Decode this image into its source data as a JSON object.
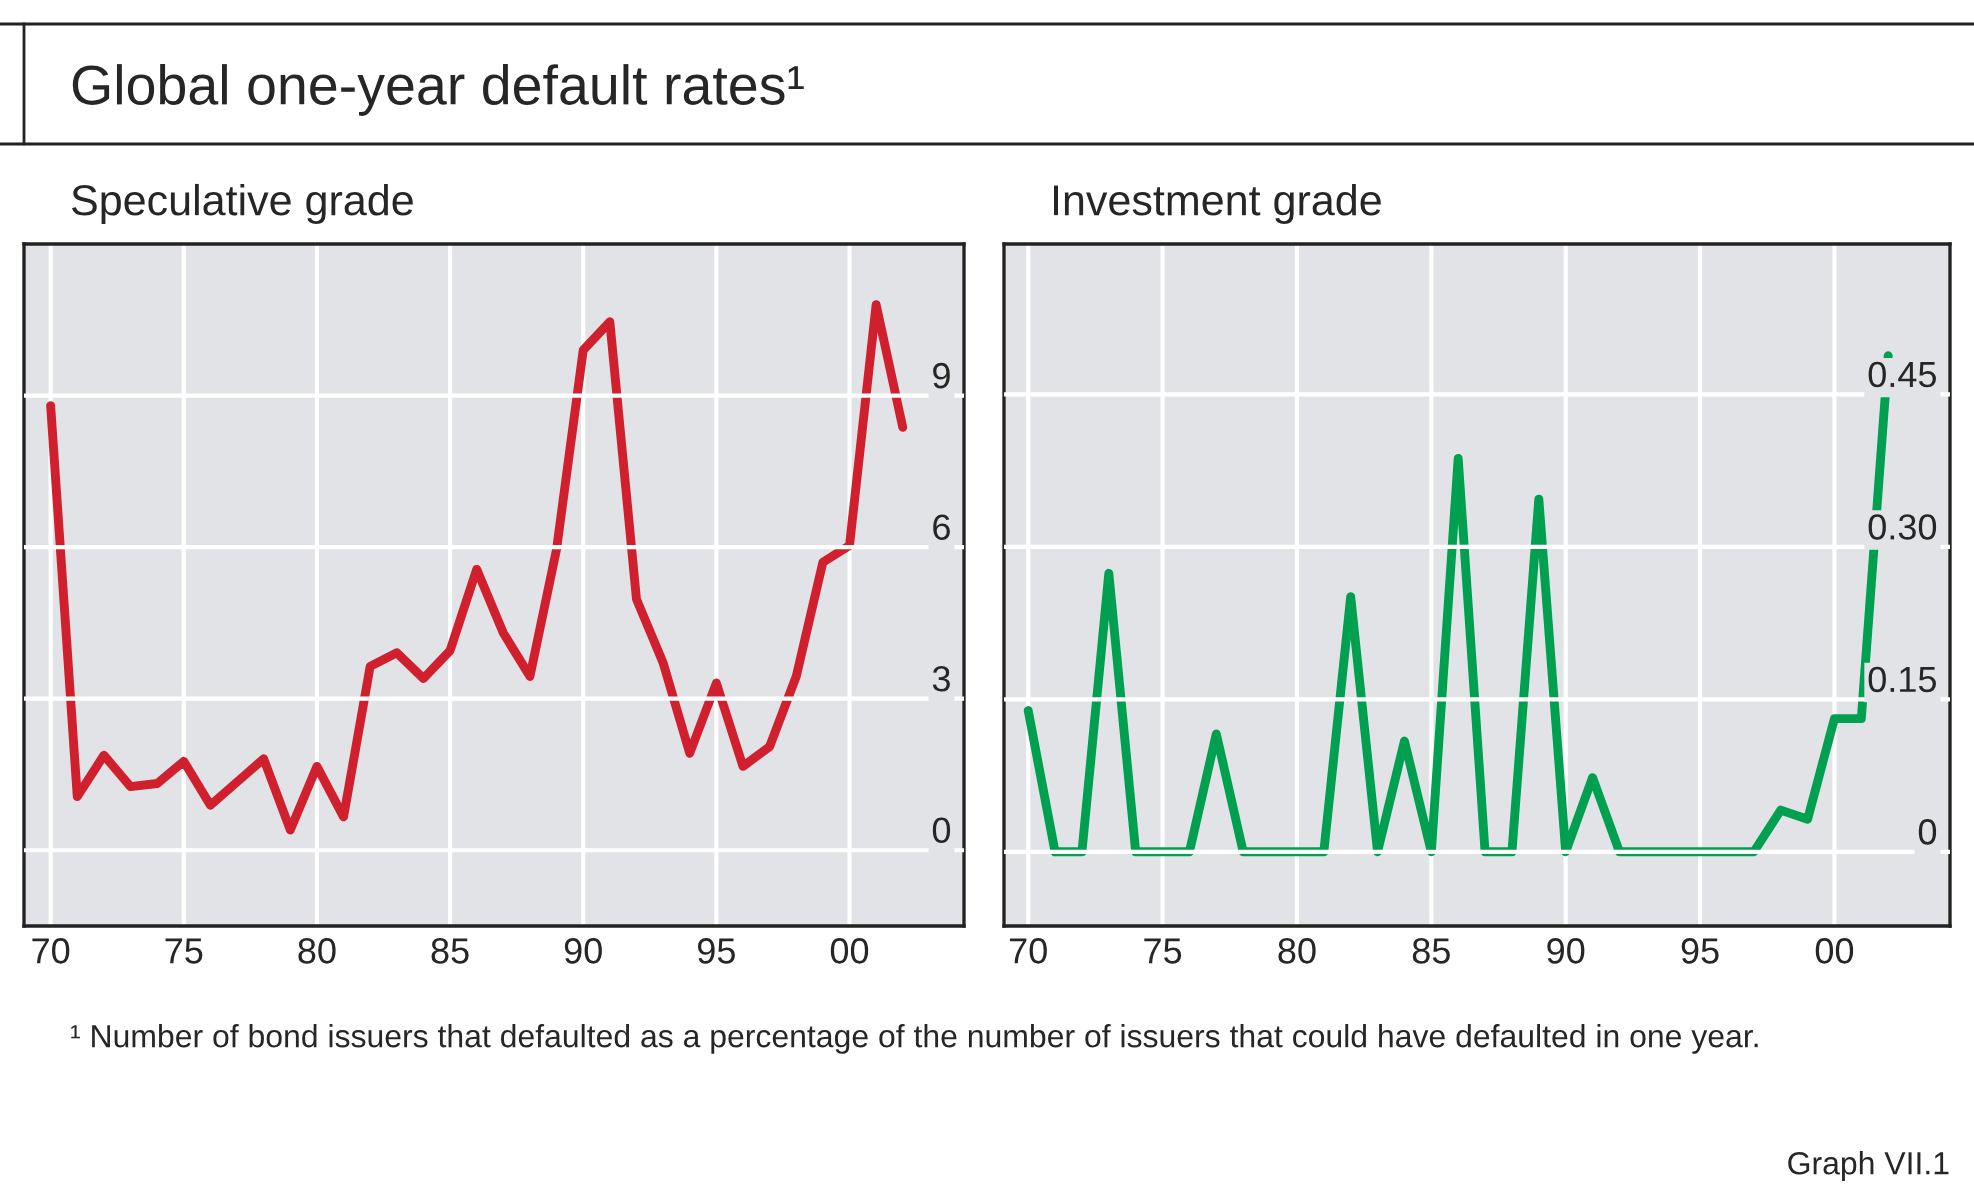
{
  "chart_data": [
    {
      "type": "line",
      "title": "Global one-year default rates¹",
      "subtitle": "Speculative grade",
      "x": [
        1970,
        1971,
        1972,
        1973,
        1974,
        1975,
        1976,
        1977,
        1978,
        1979,
        1980,
        1981,
        1982,
        1983,
        1984,
        1985,
        1986,
        1987,
        1988,
        1989,
        1990,
        1991,
        1992,
        1993,
        1994,
        1995,
        1996,
        1997,
        1998,
        1999,
        2000,
        2001,
        2002
      ],
      "series": [
        {
          "color": "#d0202e",
          "values": [
            8.8,
            1.06,
            1.88,
            1.26,
            1.32,
            1.76,
            0.89,
            1.35,
            1.81,
            0.4,
            1.66,
            0.66,
            3.64,
            3.91,
            3.4,
            3.95,
            5.56,
            4.3,
            3.44,
            5.96,
            9.9,
            10.46,
            4.97,
            3.71,
            1.92,
            3.31,
            1.66,
            2.05,
            3.44,
            5.7,
            6.03,
            10.8,
            8.37
          ]
        }
      ],
      "xlim": [
        1969,
        2004.3
      ],
      "xticks": [
        {
          "value": 1970,
          "label": "70"
        },
        {
          "value": 1975,
          "label": "75"
        },
        {
          "value": 1980,
          "label": "80"
        },
        {
          "value": 1985,
          "label": "85"
        },
        {
          "value": 1990,
          "label": "90"
        },
        {
          "value": 1995,
          "label": "95"
        },
        {
          "value": 2000,
          "label": "00"
        }
      ],
      "ylim": [
        -1.5,
        12
      ],
      "yticks": [
        0,
        3,
        6,
        9
      ],
      "grid": true,
      "line_style": "solid",
      "annotations": [
        "¹ Number of bond issuers that defaulted as a percentage of the number of issuers that could have defaulted in one year.",
        "Graph VII.1"
      ]
    },
    {
      "type": "line",
      "title": "Investment grade",
      "x": [
        1970,
        1971,
        1972,
        1973,
        1974,
        1975,
        1976,
        1977,
        1978,
        1979,
        1980,
        1981,
        1982,
        1983,
        1984,
        1985,
        1986,
        1987,
        1988,
        1989,
        1990,
        1991,
        1992,
        1993,
        1994,
        1995,
        1996,
        1997,
        1998,
        1999,
        2000,
        2001,
        2002
      ],
      "series": [
        {
          "color": "#00a050",
          "values": [
            0.139,
            0,
            0,
            0.274,
            0,
            0,
            0,
            0.116,
            0,
            0,
            0,
            0,
            0.251,
            0,
            0.109,
            0,
            0.387,
            0,
            0,
            0.347,
            0,
            0.073,
            0,
            0,
            0,
            0,
            0,
            0,
            0.041,
            0.032,
            0.131,
            0.131,
            0.488
          ]
        }
      ],
      "xlim": [
        1969.1,
        2004.3
      ],
      "xticks": [
        {
          "value": 1970,
          "label": "70"
        },
        {
          "value": 1975,
          "label": "75"
        },
        {
          "value": 1980,
          "label": "80"
        },
        {
          "value": 1985,
          "label": "85"
        },
        {
          "value": 1990,
          "label": "90"
        },
        {
          "value": 1995,
          "label": "95"
        },
        {
          "value": 2000,
          "label": "00"
        }
      ],
      "ylim": [
        -0.073,
        0.598
      ],
      "yticks": [
        0,
        {
          "value": 0.15,
          "label": "0.15"
        },
        {
          "value": 0.3,
          "label": "0.30"
        },
        {
          "value": 0.45,
          "label": "0.45"
        }
      ],
      "grid": true,
      "line_style": "solid"
    }
  ]
}
